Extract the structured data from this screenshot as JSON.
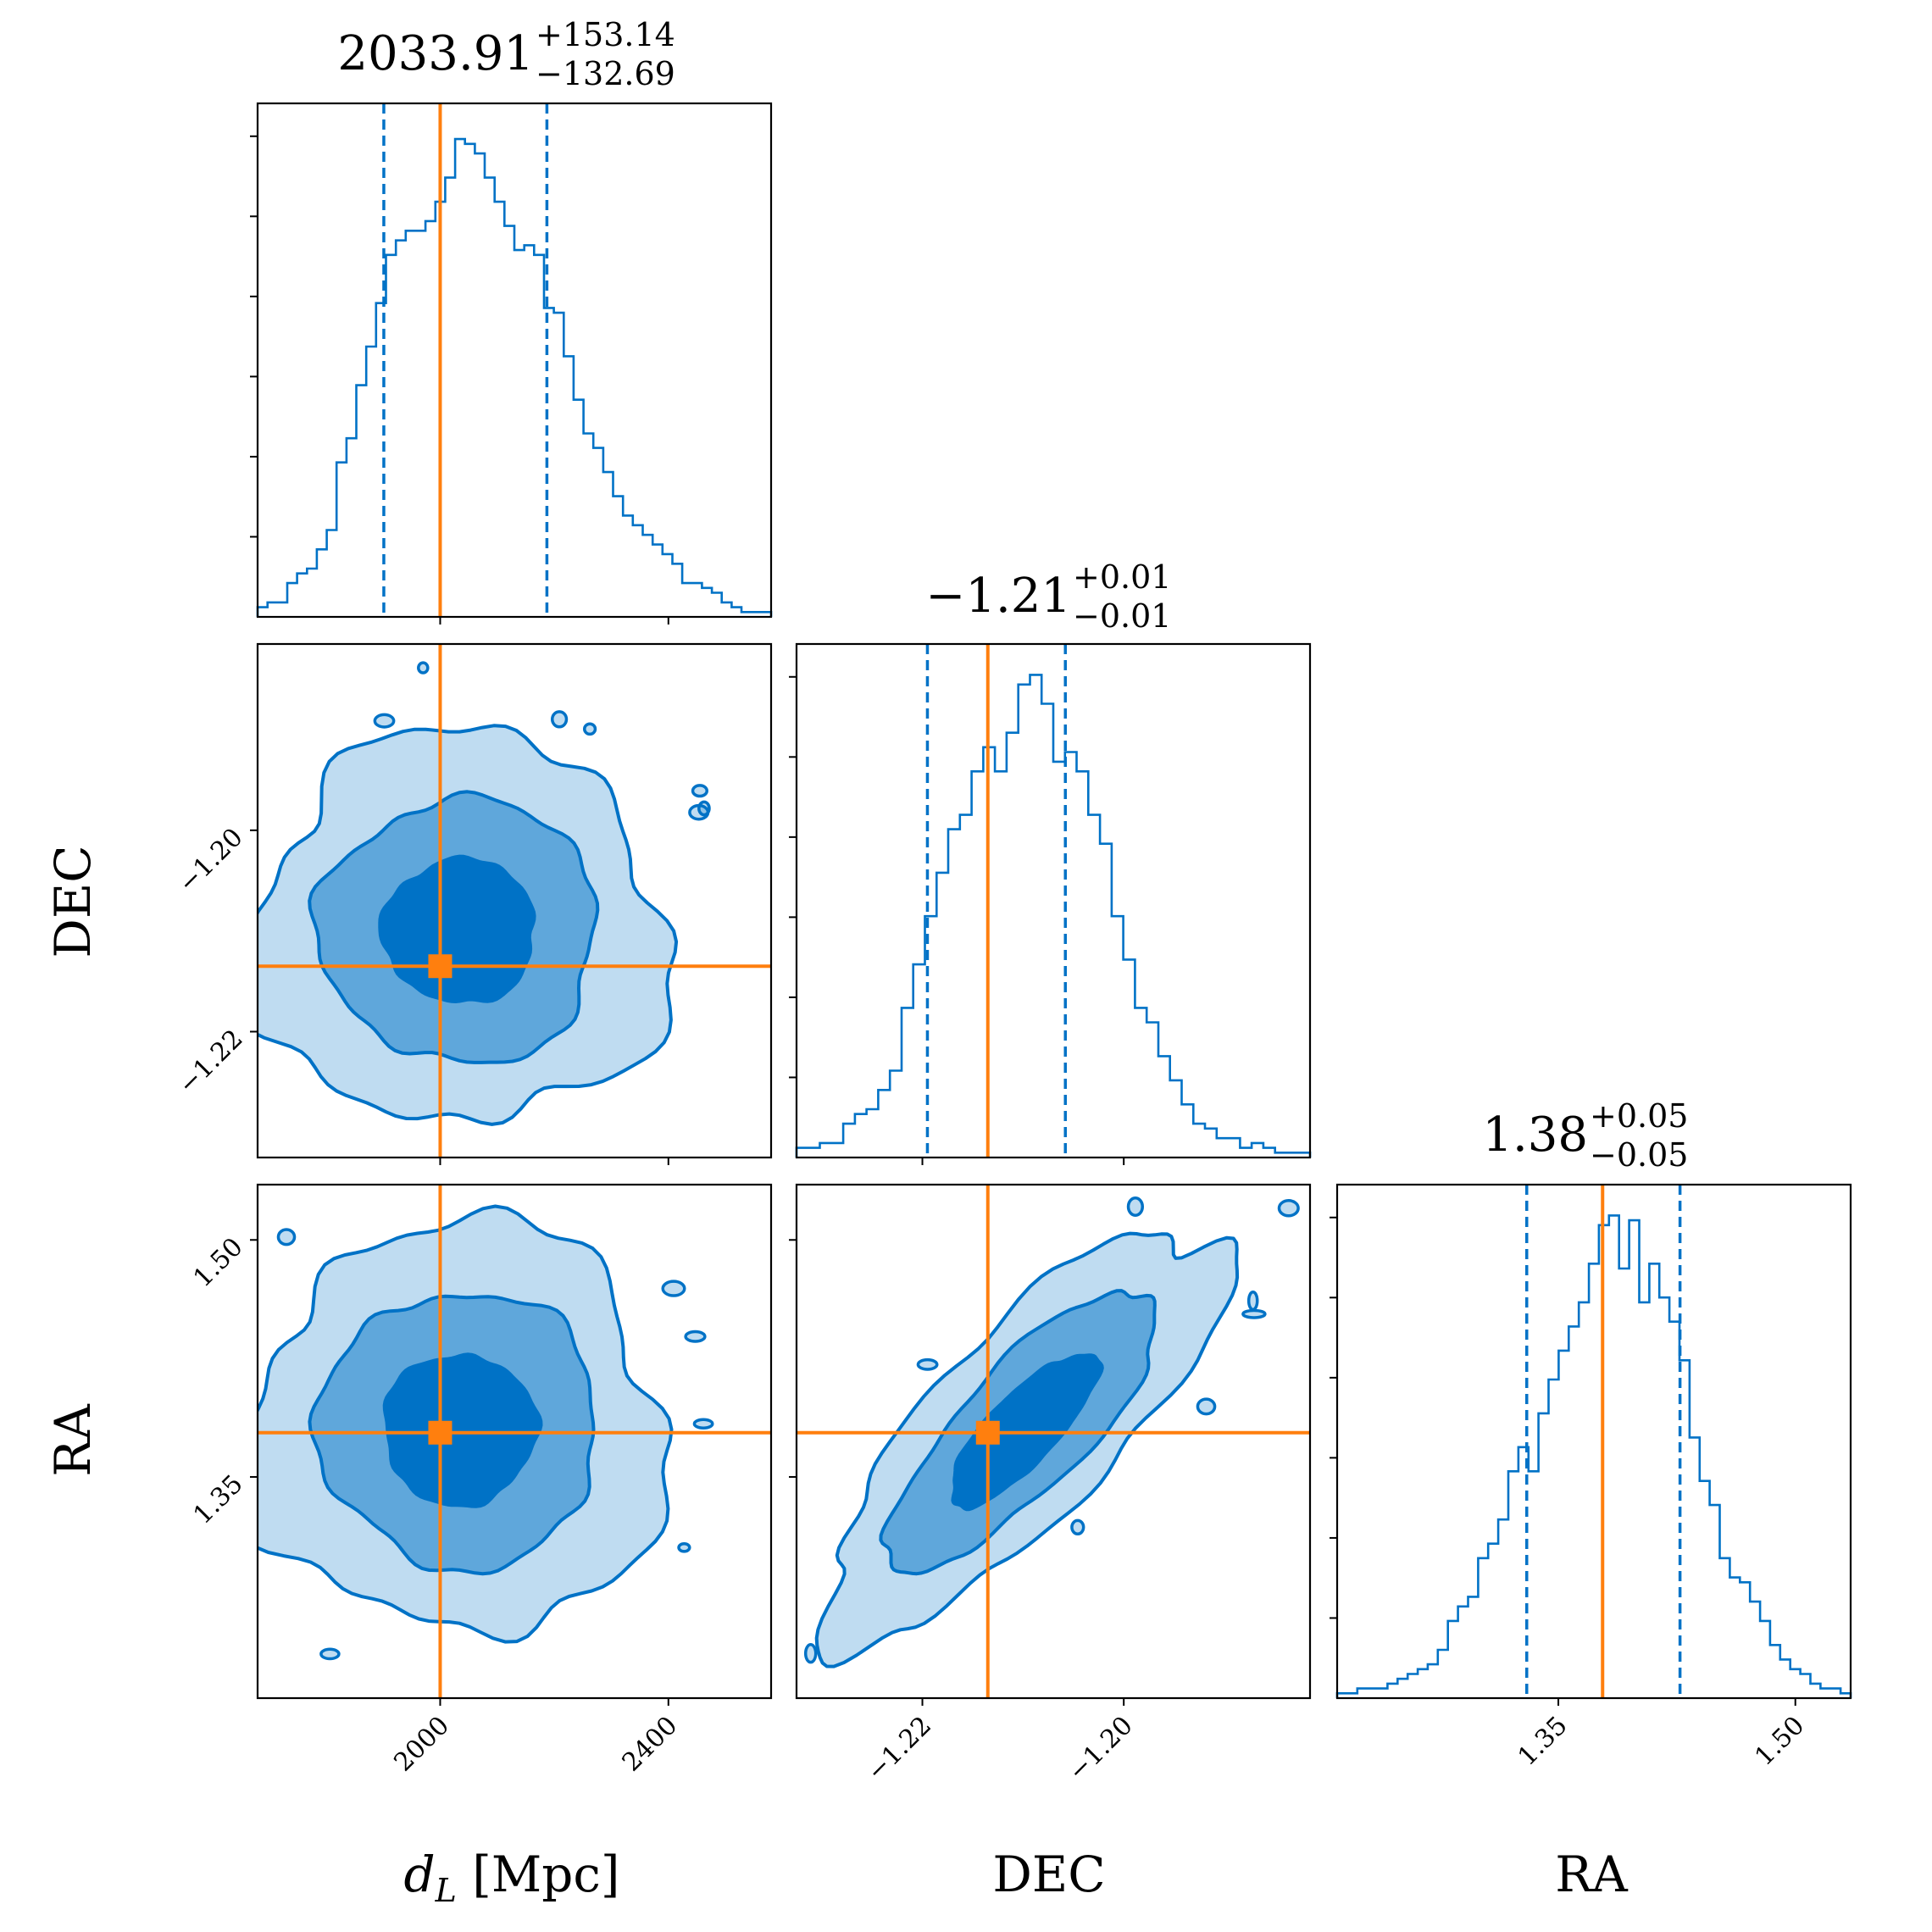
{
  "chart_data": {
    "type": "corner",
    "colors": {
      "posterior": "#0072c6",
      "truth": "#ff7f0e"
    },
    "parameters": [
      {
        "key": "dL",
        "label": "d_L [Mpc]",
        "label_main": "d",
        "label_sub": "L",
        "label_unit": " [Mpc]",
        "range": [
          1680,
          2580
        ],
        "ticks": [
          2000,
          2400
        ],
        "tick_labels": [
          "2000",
          "2400"
        ],
        "truth": 2000,
        "median": 2033.91,
        "lo": 1901.22,
        "hi": 2187.05,
        "spread": 140,
        "title_value": "2033.91",
        "title_plus": "+153.14",
        "title_minus": "−132.69"
      },
      {
        "key": "DEC",
        "label": "DEC",
        "range": [
          -1.2325,
          -1.1815
        ],
        "ticks": [
          -1.22,
          -1.2
        ],
        "tick_labels": [
          "−1.22",
          "−1.20"
        ],
        "truth": -1.2135,
        "median": -1.21,
        "lo": -1.2195,
        "hi": -1.2058,
        "spread": 0.0075,
        "title_value": "−1.21",
        "title_plus": "+0.01",
        "title_minus": "−0.01"
      },
      {
        "key": "RA",
        "label": "RA",
        "range": [
          1.21,
          1.535
        ],
        "ticks": [
          1.35,
          1.5
        ],
        "tick_labels": [
          "1.35",
          "1.50"
        ],
        "truth": 1.378,
        "median": 1.38,
        "lo": 1.33,
        "hi": 1.427,
        "spread": 0.05,
        "title_value": "1.38",
        "title_plus": "+0.05",
        "title_minus": "−0.05"
      }
    ],
    "histograms": {
      "dL": [
        0.02,
        0.03,
        0.03,
        0.07,
        0.09,
        0.1,
        0.14,
        0.18,
        0.32,
        0.37,
        0.48,
        0.56,
        0.65,
        0.75,
        0.78,
        0.8,
        0.8,
        0.82,
        0.86,
        0.91,
        0.99,
        0.98,
        0.96,
        0.91,
        0.86,
        0.81,
        0.76,
        0.77,
        0.75,
        0.64,
        0.63,
        0.54,
        0.45,
        0.38,
        0.35,
        0.3,
        0.25,
        0.21,
        0.19,
        0.17,
        0.15,
        0.13,
        0.11,
        0.07,
        0.07,
        0.06,
        0.05,
        0.03,
        0.02,
        0.01,
        0.01,
        0.01
      ],
      "DEC": [
        0.02,
        0.02,
        0.03,
        0.03,
        0.07,
        0.09,
        0.1,
        0.14,
        0.18,
        0.31,
        0.4,
        0.5,
        0.59,
        0.68,
        0.71,
        0.8,
        0.85,
        0.8,
        0.88,
        0.98,
        1.0,
        0.94,
        0.82,
        0.84,
        0.8,
        0.71,
        0.65,
        0.5,
        0.41,
        0.31,
        0.28,
        0.21,
        0.16,
        0.11,
        0.07,
        0.06,
        0.04,
        0.04,
        0.02,
        0.03,
        0.02,
        0.01,
        0.01,
        0.01
      ],
      "RA": [
        0.01,
        0.01,
        0.02,
        0.02,
        0.02,
        0.03,
        0.04,
        0.05,
        0.06,
        0.07,
        0.1,
        0.16,
        0.19,
        0.21,
        0.29,
        0.32,
        0.37,
        0.47,
        0.52,
        0.47,
        0.59,
        0.66,
        0.72,
        0.77,
        0.82,
        0.9,
        0.98,
        1.0,
        0.89,
        0.99,
        0.82,
        0.9,
        0.83,
        0.78,
        0.7,
        0.54,
        0.45,
        0.4,
        0.29,
        0.25,
        0.24,
        0.2,
        0.16,
        0.11,
        0.08,
        0.06,
        0.05,
        0.03,
        0.02,
        0.02,
        0.01
      ]
    },
    "joint_correlation": {
      "dL_DEC": 0.0,
      "dL_RA": 0.0,
      "DEC_RA": 0.8
    },
    "contour_levels": [
      "1-sigma",
      "2-sigma",
      "3-sigma"
    ],
    "grid": false,
    "legend": "none"
  }
}
